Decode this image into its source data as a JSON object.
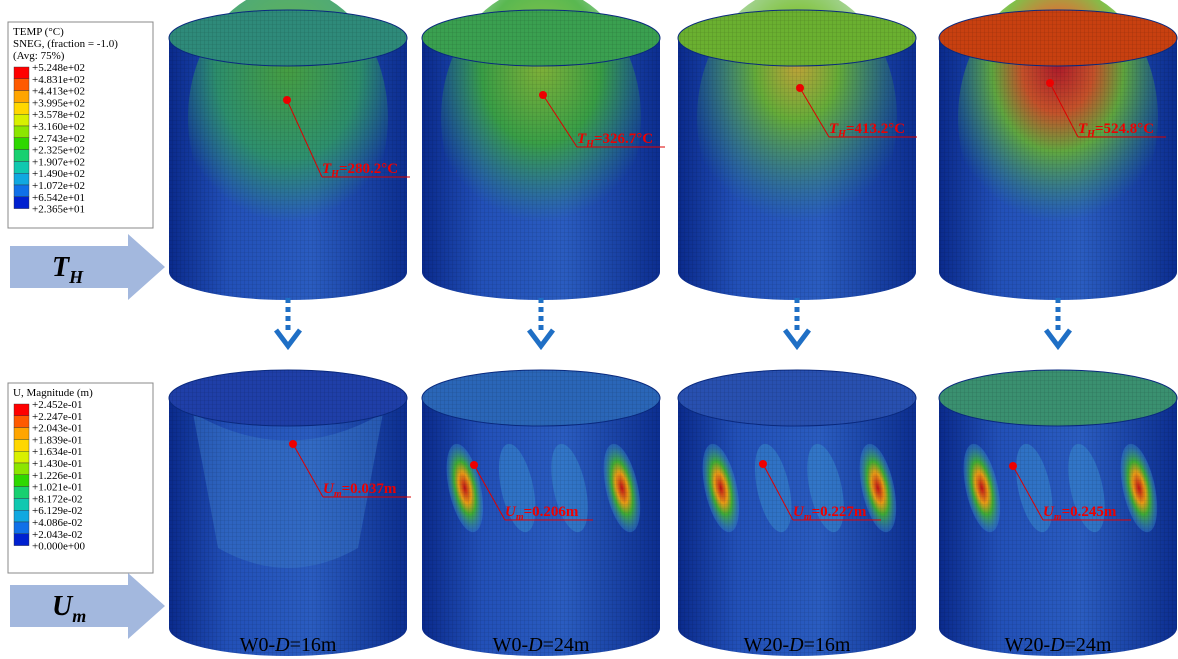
{
  "legends": [
    {
      "title": [
        "TEMP (°C)",
        "SNEG, (fraction = -1.0)",
        "(Avg: 75%)"
      ],
      "labels": [
        "+5.248e+02",
        "+4.831e+02",
        "+4.413e+02",
        "+3.995e+02",
        "+3.578e+02",
        "+3.160e+02",
        "+2.743e+02",
        "+2.325e+02",
        "+1.907e+02",
        "+1.490e+02",
        "+1.072e+02",
        "+6.542e+01",
        "+2.365e+01"
      ]
    },
    {
      "title": [
        "U, Magnitude (m)"
      ],
      "labels": [
        "+2.452e-01",
        "+2.247e-01",
        "+2.043e-01",
        "+1.839e-01",
        "+1.634e-01",
        "+1.430e-01",
        "+1.226e-01",
        "+1.021e-01",
        "+8.172e-02",
        "+6.129e-02",
        "+4.086e-02",
        "+2.043e-02",
        "+0.000e+00"
      ]
    }
  ],
  "rows": [
    {
      "symbol": "T",
      "subscript": "H",
      "annotations": [
        {
          "symbol": "T",
          "subscript": "H",
          "text": "=280.2°C"
        },
        {
          "symbol": "T",
          "subscript": "H",
          "text": "=326.7°C"
        },
        {
          "symbol": "T",
          "subscript": "H",
          "text": "=413.2°C"
        },
        {
          "symbol": "T",
          "subscript": "H",
          "text": "=524.8°C"
        }
      ]
    },
    {
      "symbol": "U",
      "subscript": "m",
      "annotations": [
        {
          "symbol": "U",
          "subscript": "m",
          "text": "=0.037m"
        },
        {
          "symbol": "U",
          "subscript": "m",
          "text": "=0.206m"
        },
        {
          "symbol": "U",
          "subscript": "m",
          "text": "=0.227m"
        },
        {
          "symbol": "U",
          "subscript": "m",
          "text": "=0.245m"
        }
      ]
    }
  ],
  "columns": [
    {
      "prefix": "W0-",
      "italic": "D",
      "suffix": "=16m"
    },
    {
      "prefix": "W0-",
      "italic": "D",
      "suffix": "=24m"
    },
    {
      "prefix": "W20-",
      "italic": "D",
      "suffix": "=16m"
    },
    {
      "prefix": "W20-",
      "italic": "D",
      "suffix": "=24m"
    }
  ]
}
